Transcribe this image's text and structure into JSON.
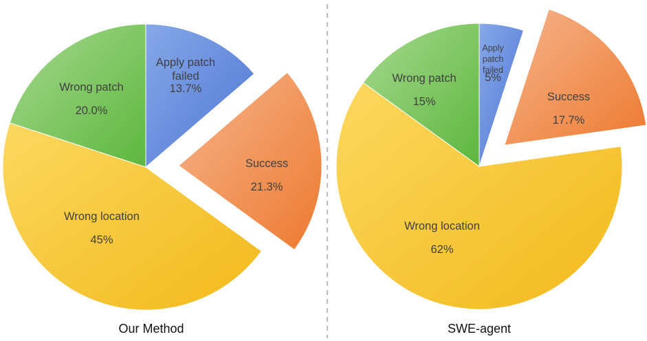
{
  "colors": {
    "apply_patch_failed": [
      "#86a8e8",
      "#4f76d4"
    ],
    "success": [
      "#f6b48c",
      "#ed7a30"
    ],
    "wrong_location": [
      "#fcd860",
      "#f2b91a"
    ],
    "wrong_patch": [
      "#a6d88e",
      "#5db73e"
    ]
  },
  "chart_data": [
    {
      "type": "pie",
      "caption": "Our Method",
      "slices": [
        {
          "label_lines": [
            "Apply patch",
            "failed"
          ],
          "value_label": "13.7%",
          "value": 13.7,
          "color_key": "apply_patch_failed",
          "exploded": false
        },
        {
          "label_lines": [
            "Success"
          ],
          "value_label": "21.3%",
          "value": 21.3,
          "color_key": "success",
          "exploded": true
        },
        {
          "label_lines": [
            "Wrong location"
          ],
          "value_label": "45%",
          "value": 45,
          "color_key": "wrong_location",
          "exploded": false
        },
        {
          "label_lines": [
            "Wrong patch"
          ],
          "value_label": "20.0%",
          "value": 20.0,
          "color_key": "wrong_patch",
          "exploded": false
        }
      ]
    },
    {
      "type": "pie",
      "caption": "SWE-agent",
      "slices": [
        {
          "label_lines": [
            "Apply",
            "patch",
            "failed"
          ],
          "value_label": "5%",
          "value": 5,
          "color_key": "apply_patch_failed",
          "exploded": false
        },
        {
          "label_lines": [
            "Success"
          ],
          "value_label": "17.7%",
          "value": 17.7,
          "color_key": "success",
          "exploded": true
        },
        {
          "label_lines": [
            "Wrong location"
          ],
          "value_label": "62%",
          "value": 62,
          "color_key": "wrong_location",
          "exploded": false
        },
        {
          "label_lines": [
            "Wrong patch"
          ],
          "value_label": "15%",
          "value": 15,
          "color_key": "wrong_patch",
          "exploded": false
        }
      ]
    }
  ]
}
